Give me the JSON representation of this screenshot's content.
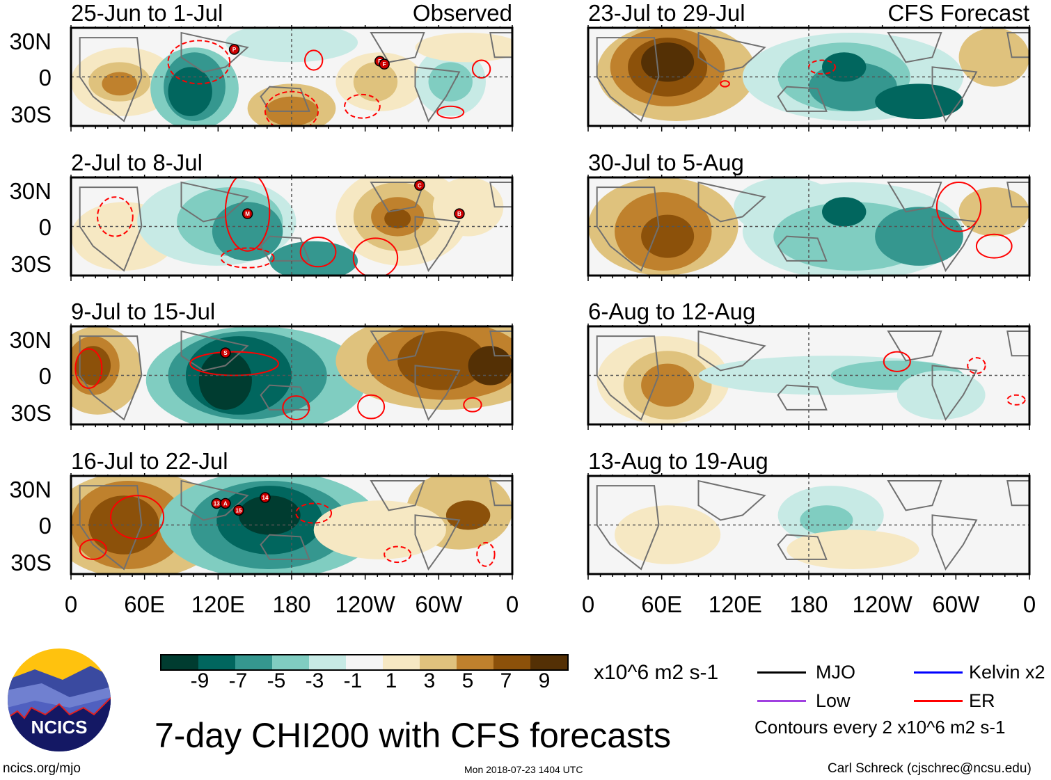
{
  "title": "7-day CHI200 with CFS forecasts",
  "units": "x10^6 m2 s-1",
  "contour_note": "Contours every 2 x10^6 m2 s-1",
  "url": "ncics.org/mjo",
  "timestamp": "Mon 2018-07-23 1404 UTC",
  "author": "Carl Schreck (cjschrec@ncsu.edu)",
  "logo_text": "NCICS",
  "column_labels": {
    "observed": "Observed",
    "forecast": "CFS Forecast"
  },
  "lat_labels": [
    "30N",
    "0",
    "30S"
  ],
  "lon_labels": [
    "0",
    "60E",
    "120E",
    "180",
    "120W",
    "60W",
    "0"
  ],
  "legend": [
    {
      "label": "MJO",
      "color": "#000000"
    },
    {
      "label": "Kelvin x2",
      "color": "#0000ff"
    },
    {
      "label": "Low",
      "color": "#a040e0"
    },
    {
      "label": "ER",
      "color": "#ff0000"
    }
  ],
  "chart_data": {
    "type": "heatmap",
    "variable": "7-day CHI200 anomaly",
    "colorbar": {
      "colors": [
        "#003c30",
        "#01665e",
        "#35978f",
        "#80cdc1",
        "#c7eae5",
        "#f5f5f5",
        "#f6e8c3",
        "#dfc27d",
        "#bf812d",
        "#8c510a",
        "#543005"
      ],
      "tick_labels": [
        "-9",
        "-7",
        "-5",
        "-3",
        "-1",
        "1",
        "3",
        "5",
        "7",
        "9"
      ]
    },
    "lat_range": [
      -40,
      40
    ],
    "lon_range": [
      0,
      360
    ],
    "panels": [
      {
        "period": "25-Jun to 1-Jul",
        "type": "Observed",
        "storms": [
          "P",
          "E",
          "F"
        ]
      },
      {
        "period": "2-Jul to 8-Jul",
        "type": "Observed",
        "storms": [
          "C",
          "M",
          "B"
        ]
      },
      {
        "period": "9-Jul to 15-Jul",
        "type": "Observed",
        "storms": [
          "S"
        ]
      },
      {
        "period": "16-Jul to 22-Jul",
        "type": "Observed",
        "storms": [
          "13",
          "A",
          "15",
          "14"
        ]
      },
      {
        "period": "23-Jul to 29-Jul",
        "type": "CFS Forecast",
        "storms": []
      },
      {
        "period": "30-Jul to 5-Aug",
        "type": "CFS Forecast",
        "storms": []
      },
      {
        "period": "6-Aug to 12-Aug",
        "type": "CFS Forecast",
        "storms": []
      },
      {
        "period": "13-Aug to 19-Aug",
        "type": "CFS Forecast",
        "storms": []
      }
    ]
  }
}
